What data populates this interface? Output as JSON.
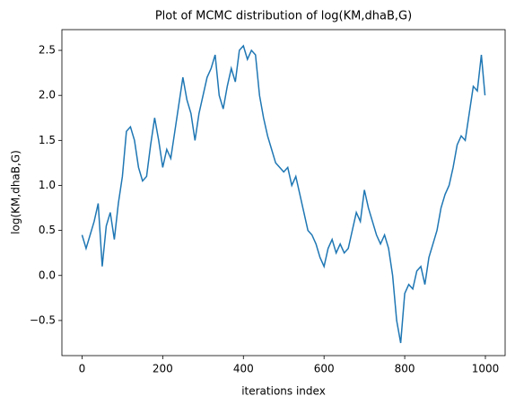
{
  "chart_data": {
    "type": "line",
    "title": "Plot of MCMC distribution of log(KM,dhaB,G)",
    "xlabel": "iterations index",
    "ylabel": "log(KM,dhaB,G)",
    "color": "#1f77b4",
    "x": [
      0,
      10,
      20,
      30,
      40,
      50,
      60,
      70,
      80,
      90,
      100,
      110,
      120,
      130,
      140,
      150,
      160,
      170,
      180,
      190,
      200,
      210,
      220,
      230,
      240,
      250,
      260,
      270,
      280,
      290,
      300,
      310,
      320,
      330,
      340,
      350,
      360,
      370,
      380,
      390,
      400,
      410,
      420,
      430,
      440,
      450,
      460,
      470,
      480,
      490,
      500,
      510,
      520,
      530,
      540,
      550,
      560,
      570,
      580,
      590,
      600,
      610,
      620,
      630,
      640,
      650,
      660,
      670,
      680,
      690,
      700,
      710,
      720,
      730,
      740,
      750,
      760,
      770,
      780,
      790,
      800,
      810,
      820,
      830,
      840,
      850,
      860,
      870,
      880,
      890,
      900,
      910,
      920,
      930,
      940,
      950,
      960,
      970,
      980,
      990,
      999
    ],
    "values": [
      0.45,
      0.3,
      0.45,
      0.6,
      0.8,
      0.1,
      0.55,
      0.7,
      0.4,
      0.8,
      1.1,
      1.6,
      1.65,
      1.5,
      1.2,
      1.05,
      1.1,
      1.45,
      1.75,
      1.5,
      1.2,
      1.4,
      1.3,
      1.6,
      1.9,
      2.2,
      1.95,
      1.8,
      1.5,
      1.8,
      2.0,
      2.2,
      2.3,
      2.45,
      2.0,
      1.85,
      2.1,
      2.3,
      2.15,
      2.5,
      2.55,
      2.4,
      2.5,
      2.45,
      2.0,
      1.75,
      1.55,
      1.4,
      1.25,
      1.2,
      1.15,
      1.2,
      1.0,
      1.1,
      0.9,
      0.7,
      0.5,
      0.45,
      0.35,
      0.2,
      0.1,
      0.3,
      0.4,
      0.25,
      0.35,
      0.25,
      0.3,
      0.5,
      0.7,
      0.6,
      0.95,
      0.75,
      0.6,
      0.45,
      0.35,
      0.45,
      0.3,
      0.0,
      -0.5,
      -0.75,
      -0.2,
      -0.1,
      -0.15,
      0.05,
      0.1,
      -0.1,
      0.2,
      0.35,
      0.5,
      0.75,
      0.9,
      1.0,
      1.2,
      1.45,
      1.55,
      1.5,
      1.8,
      2.1,
      2.05,
      2.45,
      2.0
    ],
    "xlim": [
      -49.95,
      1048.95
    ],
    "ylim": [
      -0.89,
      2.73
    ],
    "xticks": [
      0,
      200,
      400,
      600,
      800,
      1000
    ],
    "yticks": [
      {
        "value": -0.5,
        "label": "−0.5"
      },
      {
        "value": 0,
        "label": "0.0"
      },
      0.5,
      {
        "value": 1,
        "label": "1.0"
      },
      1.5,
      {
        "value": 2,
        "label": "2.0"
      },
      2.5
    ]
  }
}
